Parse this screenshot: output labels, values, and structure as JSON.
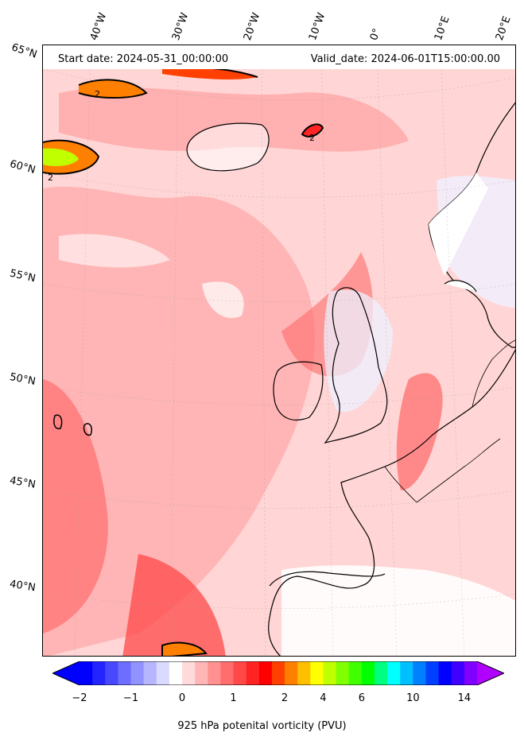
{
  "map": {
    "start_date": "Start date: 2024-05-31_00:00:00",
    "valid_date": "Valid_date: 2024-06-01T15:00:00.00",
    "lon_labels": [
      "40°W",
      "30°W",
      "20°W",
      "10°W",
      "0°",
      "10°E",
      "20°E"
    ],
    "lat_labels": [
      "65°N",
      "60°N",
      "55°N",
      "50°N",
      "45°N",
      "40°N"
    ],
    "contour_label": "2"
  },
  "colorbar": {
    "label": "925 hPa potenital vorticity (PVU)",
    "ticks": [
      "−2",
      "−1",
      "0",
      "1",
      "2",
      "4",
      "6",
      "10",
      "14"
    ],
    "colors": [
      "#0000ff",
      "#2424ff",
      "#4848ff",
      "#6d6dff",
      "#9191ff",
      "#b6b6ff",
      "#dadaff",
      "#ffffff",
      "#ffdada",
      "#ffb6b6",
      "#ff9191",
      "#ff6d6d",
      "#ff4848",
      "#ff2424",
      "#ff0000",
      "#ff4000",
      "#ff8000",
      "#ffbf00",
      "#ffff00",
      "#bfff00",
      "#80ff00",
      "#40ff00",
      "#00ff00",
      "#00ff80",
      "#00ffff",
      "#00bfff",
      "#0080ff",
      "#0040ff",
      "#0000ff",
      "#4000ff",
      "#8000ff"
    ],
    "left_extend_color": "#0000ff",
    "right_extend_color": "#b000ff"
  }
}
